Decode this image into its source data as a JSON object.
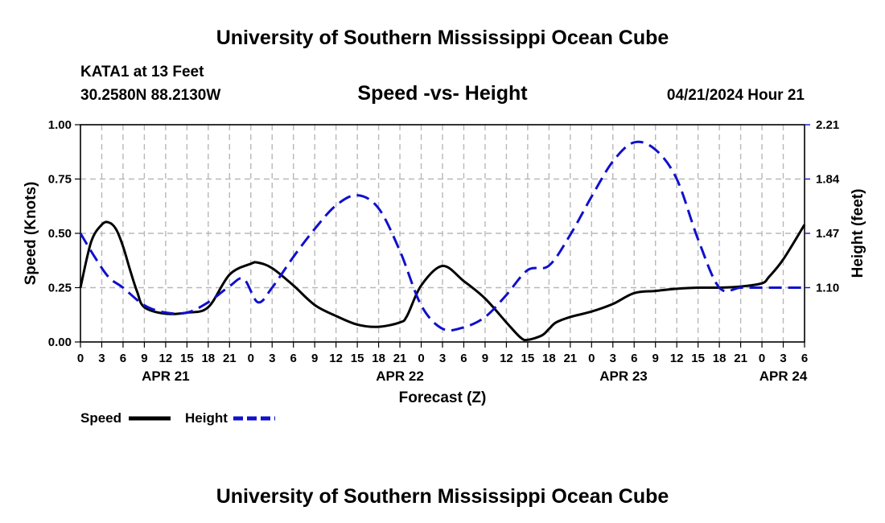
{
  "header": {
    "title": "University of Southern Mississippi Ocean Cube",
    "station": "KATA1 at 13 Feet",
    "coords": "30.2580N  88.2130W",
    "subtitle": "Speed -vs- Height",
    "datetime": "04/21/2024 Hour 21",
    "footer_title": "University of Southern Mississippi Ocean Cube"
  },
  "chart_data": {
    "type": "line",
    "title": "Speed -vs- Height",
    "xlabel": "Forecast (Z)",
    "ylabel": "Speed (Knots)",
    "y2label": "Height (feet)",
    "x_hours": [
      0,
      3,
      6,
      9,
      12,
      15,
      18,
      21,
      24,
      27,
      30,
      33,
      36,
      39,
      42,
      45,
      48,
      51,
      54,
      57,
      60,
      63,
      66,
      69,
      72,
      75,
      78,
      81,
      84,
      87,
      90,
      93,
      96,
      99,
      102
    ],
    "x_tick_labels": [
      "0",
      "3",
      "6",
      "9",
      "12",
      "15",
      "18",
      "21",
      "0",
      "3",
      "6",
      "9",
      "12",
      "15",
      "18",
      "21",
      "0",
      "3",
      "6",
      "9",
      "12",
      "15",
      "18",
      "21",
      "0",
      "3",
      "6",
      "9",
      "12",
      "15",
      "18",
      "21",
      "0",
      "3",
      "6"
    ],
    "date_labels": [
      {
        "label": "APR 21",
        "hour": 12
      },
      {
        "label": "APR 22",
        "hour": 45
      },
      {
        "label": "APR 23",
        "hour": 76.5
      },
      {
        "label": "APR 24",
        "hour": 99
      }
    ],
    "ylim": [
      0,
      1
    ],
    "y_ticks": [
      "0.00",
      "0.25",
      "0.50",
      "0.75",
      "1.00"
    ],
    "y2lim": [
      0.73,
      2.21
    ],
    "y2_ticks": [
      "1.10",
      "1.47",
      "1.84",
      "2.21"
    ],
    "legend": [
      {
        "name": "Speed",
        "color": "#000000",
        "dash": "solid"
      },
      {
        "name": "Height",
        "color": "#1010cc",
        "dash": "dashed"
      }
    ],
    "series": [
      {
        "name": "Speed",
        "axis": "left",
        "color": "#000000",
        "hours": [
          0,
          1.5,
          3,
          4,
          5,
          6,
          7,
          8,
          9,
          12,
          15,
          18,
          21,
          24,
          25,
          27,
          30,
          33,
          36,
          39,
          42,
          45,
          46,
          48,
          51,
          54,
          57,
          60,
          62,
          63,
          65,
          66,
          67,
          69,
          72,
          75,
          78,
          81,
          84,
          87,
          90,
          93,
          96,
          97,
          99,
          102
        ],
        "values": [
          0.25,
          0.46,
          0.54,
          0.55,
          0.52,
          0.44,
          0.33,
          0.23,
          0.16,
          0.13,
          0.135,
          0.16,
          0.31,
          0.36,
          0.365,
          0.34,
          0.26,
          0.17,
          0.12,
          0.08,
          0.07,
          0.09,
          0.12,
          0.26,
          0.35,
          0.28,
          0.2,
          0.09,
          0.02,
          0.01,
          0.03,
          0.06,
          0.09,
          0.115,
          0.14,
          0.175,
          0.225,
          0.235,
          0.245,
          0.25,
          0.25,
          0.255,
          0.27,
          0.3,
          0.38,
          0.54
        ]
      },
      {
        "name": "Height",
        "axis": "right",
        "color": "#1010cc",
        "hours": [
          0,
          2,
          4,
          6,
          9,
          12,
          15,
          18,
          21,
          23,
          25,
          27,
          30,
          33,
          36,
          39,
          42,
          45,
          48,
          51,
          54,
          57,
          60,
          63,
          66,
          69,
          72,
          75,
          78,
          81,
          84,
          87,
          90,
          93,
          96,
          99,
          102
        ],
        "values": [
          1.47,
          1.31,
          1.17,
          1.1,
          0.98,
          0.93,
          0.93,
          1.0,
          1.11,
          1.16,
          1.0,
          1.1,
          1.31,
          1.5,
          1.66,
          1.73,
          1.64,
          1.35,
          0.98,
          0.82,
          0.83,
          0.9,
          1.05,
          1.22,
          1.25,
          1.46,
          1.72,
          1.96,
          2.09,
          2.04,
          1.84,
          1.43,
          1.1,
          1.1,
          1.1,
          1.1,
          1.1
        ]
      }
    ]
  }
}
